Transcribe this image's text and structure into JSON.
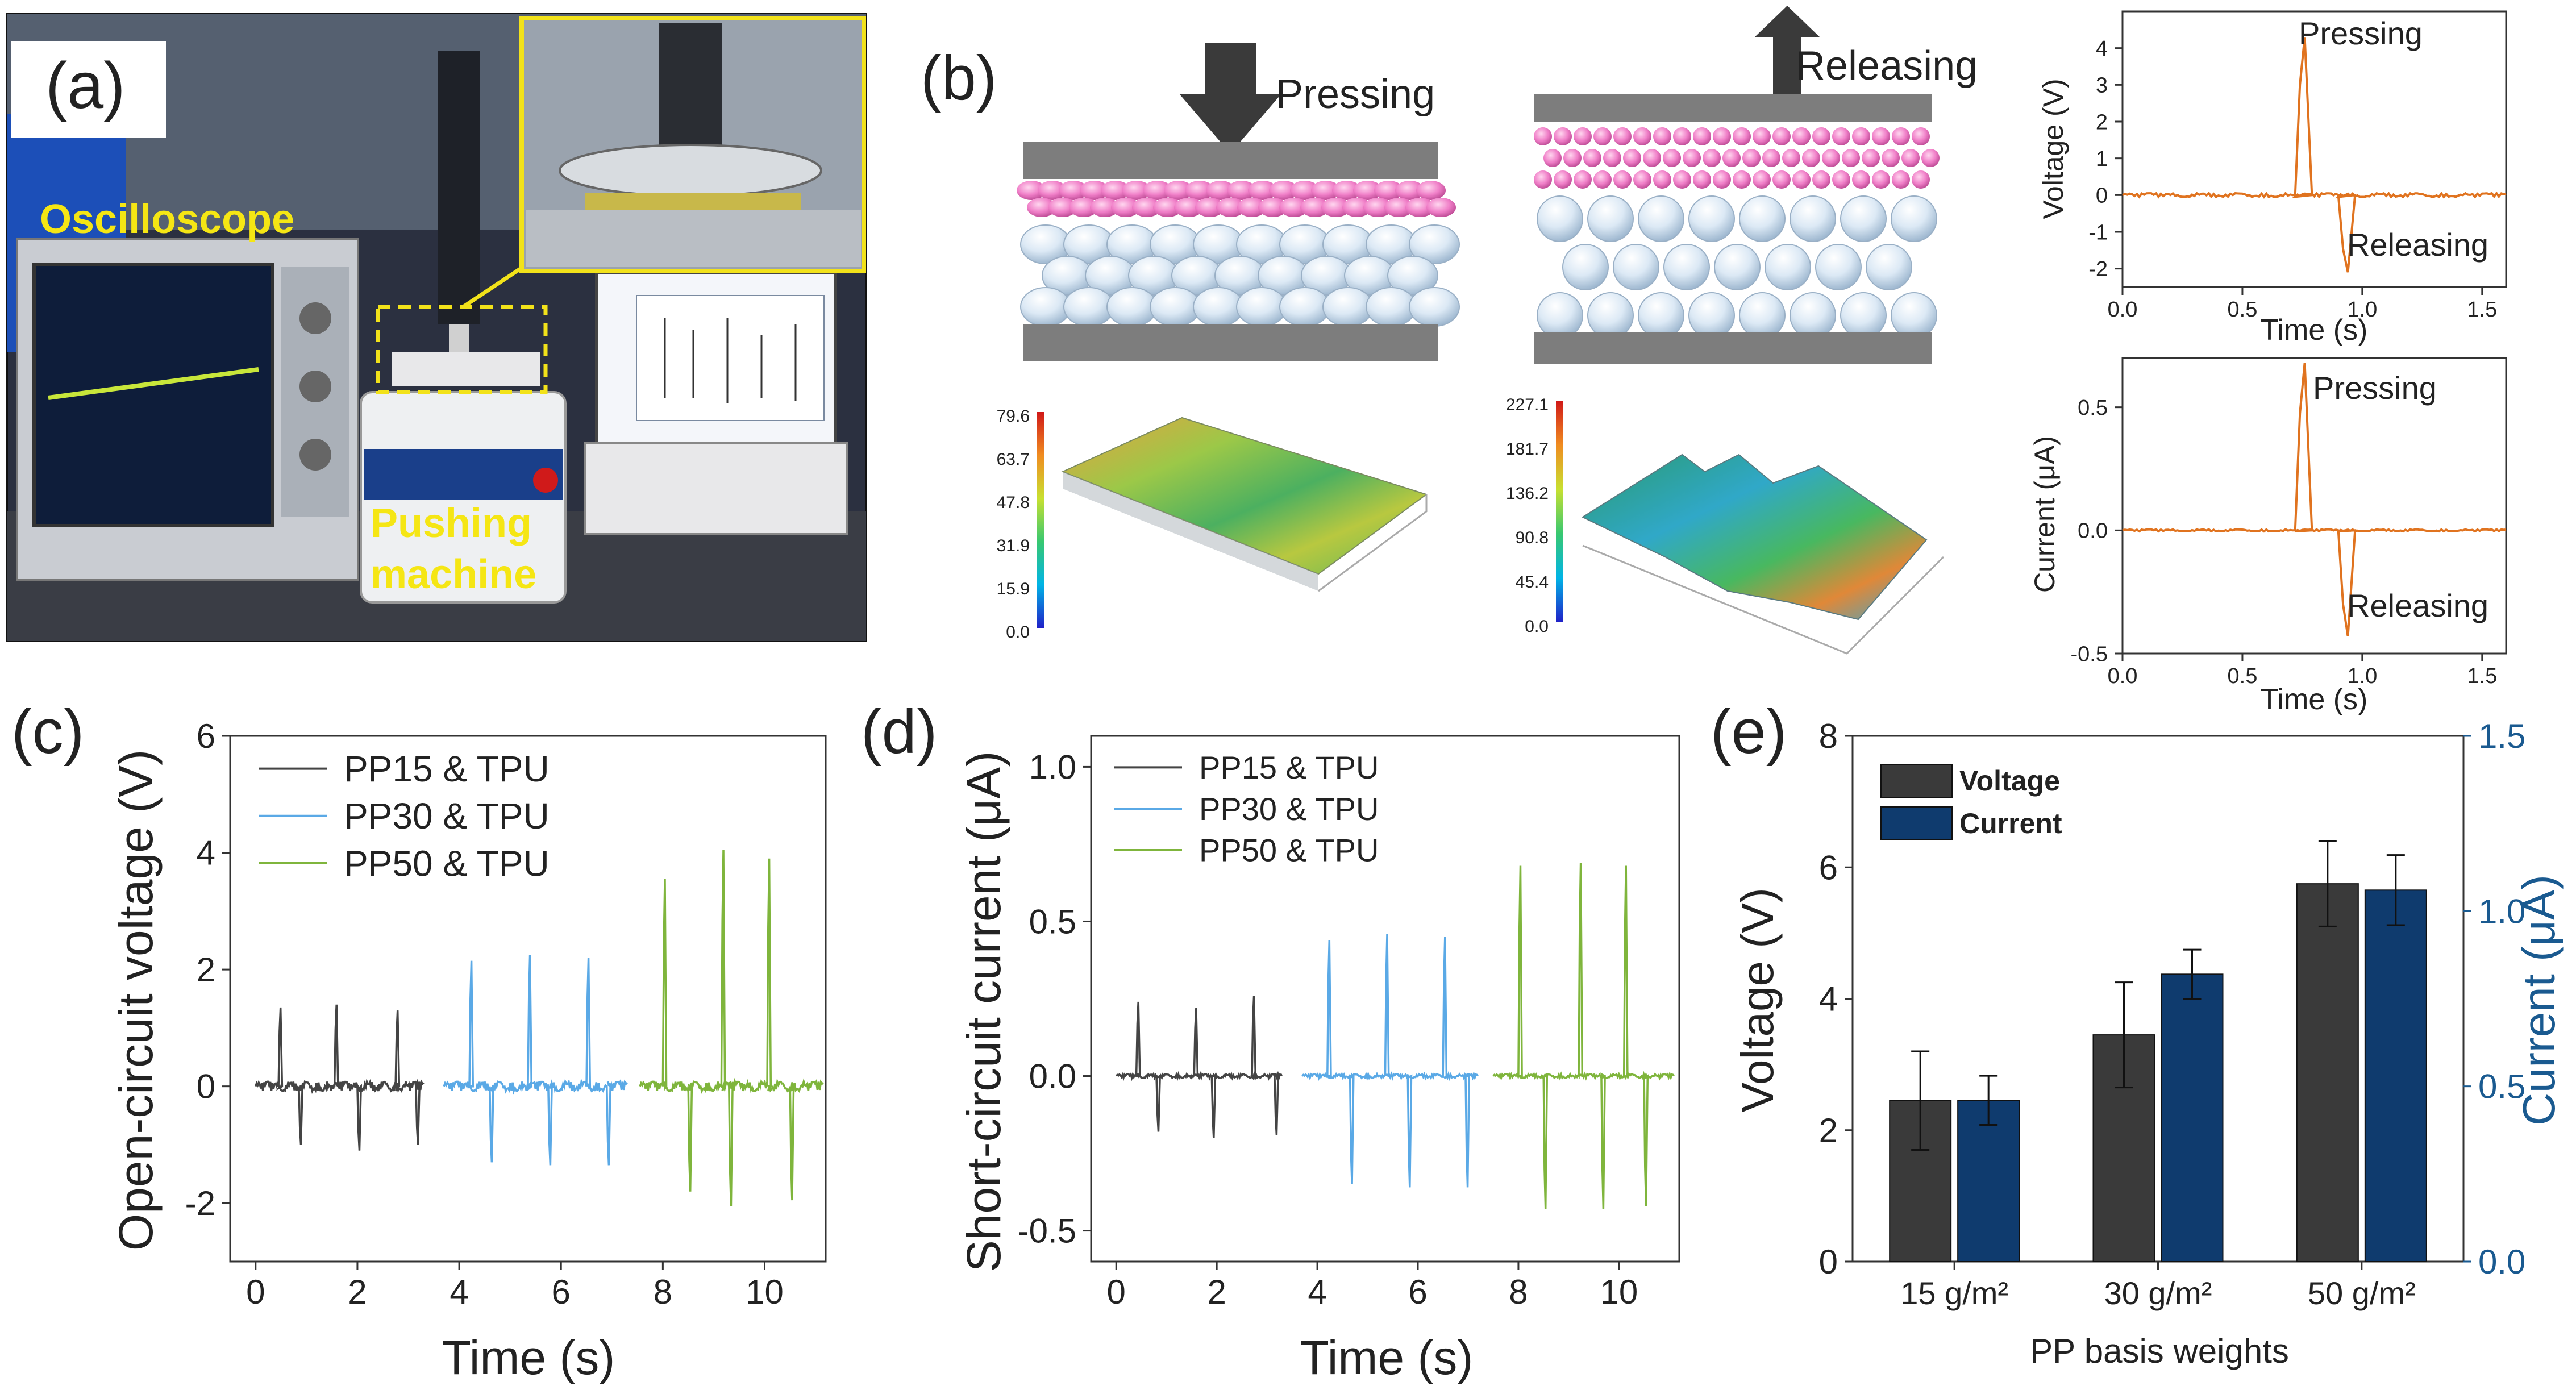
{
  "panels": {
    "a": {
      "label": "(a)",
      "oscilloscope_label": "Oscilloscope",
      "pushing_machine_label_1": "Pushing",
      "pushing_machine_label_2": "machine"
    },
    "b": {
      "label": "(b)",
      "pressing_label": "Pressing",
      "releasing_label": "Releasing",
      "colorbar_left": [
        "79.6",
        "63.7",
        "47.8",
        "31.9",
        "15.9",
        "0.0"
      ],
      "colorbar_right": [
        "227.1",
        "181.7",
        "136.2",
        "90.8",
        "45.4",
        "0.0"
      ]
    },
    "c": {
      "label": "(c)"
    },
    "d": {
      "label": "(d)"
    },
    "e": {
      "label": "(e)"
    }
  },
  "colors": {
    "pp15": "#444444",
    "pp30": "#5aa9e6",
    "pp50": "#7fb53c",
    "orange": "#e0731f",
    "voltage_bar": "#3a3a3a",
    "current_bar": "#0f3b6e",
    "current_axis": "#1a5a90"
  },
  "chart_data": [
    {
      "id": "b-voltage",
      "type": "line",
      "xlabel": "Time (s)",
      "ylabel": "Voltage (V)",
      "xlim": [
        0,
        1.6
      ],
      "ylim": [
        -2.5,
        5
      ],
      "xticks": [
        "0.0",
        "0.5",
        "1.0",
        "1.5"
      ],
      "yticks": [
        "-2",
        "-1",
        "0",
        "1",
        "2",
        "3",
        "4"
      ],
      "annotations": [
        "Pressing",
        "Releasing"
      ],
      "peak_time": 0.72,
      "peak_value": 4.3,
      "valley_time": 0.9,
      "valley_value": -2.1
    },
    {
      "id": "b-current",
      "type": "line",
      "xlabel": "Time (s)",
      "ylabel": "Current (μA)",
      "xlim": [
        0,
        1.6
      ],
      "ylim": [
        -0.5,
        0.7
      ],
      "xticks": [
        "0.0",
        "0.5",
        "1.0",
        "1.5"
      ],
      "yticks": [
        "-0.5",
        "0.0",
        "0.5"
      ],
      "annotations": [
        "Pressing",
        "Releasing"
      ],
      "peak_time": 0.72,
      "peak_value": 0.68,
      "valley_time": 0.9,
      "valley_value": -0.43
    },
    {
      "id": "c",
      "type": "line",
      "xlabel": "Time (s)",
      "ylabel": "Open-circuit voltage (V)",
      "xlim": [
        -0.5,
        11.2
      ],
      "ylim": [
        -3,
        6
      ],
      "xticks": [
        "0",
        "2",
        "4",
        "6",
        "8",
        "10"
      ],
      "yticks": [
        "-2",
        "0",
        "2",
        "4",
        "6"
      ],
      "legend_position": "top-left",
      "series": [
        {
          "name": "PP15 & TPU",
          "start": 0,
          "end": 3.3,
          "peaks": [
            [
              0.45,
              1.35
            ],
            [
              1.55,
              1.4
            ],
            [
              2.75,
              1.3
            ]
          ],
          "valleys": [
            [
              0.85,
              -1.0
            ],
            [
              2.0,
              -1.1
            ],
            [
              3.15,
              -1.0
            ]
          ]
        },
        {
          "name": "PP30 & TPU",
          "start": 3.7,
          "end": 7.3,
          "peaks": [
            [
              4.2,
              2.15
            ],
            [
              5.35,
              2.25
            ],
            [
              6.5,
              2.2
            ]
          ],
          "valleys": [
            [
              4.6,
              -1.3
            ],
            [
              5.75,
              -1.35
            ],
            [
              6.9,
              -1.35
            ]
          ]
        },
        {
          "name": "PP50 & TPU",
          "start": 7.55,
          "end": 11.15,
          "peaks": [
            [
              8.0,
              3.55
            ],
            [
              9.15,
              4.05
            ],
            [
              10.05,
              3.9
            ]
          ],
          "valleys": [
            [
              8.5,
              -1.8
            ],
            [
              9.3,
              -2.05
            ],
            [
              10.5,
              -1.95
            ]
          ]
        }
      ]
    },
    {
      "id": "d",
      "type": "line",
      "xlabel": "Time (s)",
      "ylabel": "Short-circuit current (μA)",
      "xlim": [
        -0.5,
        11.2
      ],
      "ylim": [
        -0.6,
        1.1
      ],
      "xticks": [
        "0",
        "2",
        "4",
        "6",
        "8",
        "10"
      ],
      "yticks": [
        "-0.5",
        "0.0",
        "0.5",
        "1.0"
      ],
      "legend_position": "top-left",
      "series": [
        {
          "name": "PP15 & TPU",
          "start": 0,
          "end": 3.3,
          "peaks": [
            [
              0.4,
              0.24
            ],
            [
              1.55,
              0.22
            ],
            [
              2.7,
              0.26
            ]
          ],
          "valleys": [
            [
              0.8,
              -0.18
            ],
            [
              1.9,
              -0.2
            ],
            [
              3.15,
              -0.19
            ]
          ]
        },
        {
          "name": "PP30 & TPU",
          "start": 3.7,
          "end": 7.2,
          "peaks": [
            [
              4.2,
              0.44
            ],
            [
              5.35,
              0.46
            ],
            [
              6.5,
              0.45
            ]
          ],
          "valleys": [
            [
              4.65,
              -0.35
            ],
            [
              5.8,
              -0.36
            ],
            [
              6.95,
              -0.36
            ]
          ]
        },
        {
          "name": "PP50 & TPU",
          "start": 7.5,
          "end": 11.1,
          "peaks": [
            [
              8.0,
              0.68
            ],
            [
              9.2,
              0.69
            ],
            [
              10.1,
              0.68
            ]
          ],
          "valleys": [
            [
              8.5,
              -0.43
            ],
            [
              9.65,
              -0.43
            ],
            [
              10.5,
              -0.42
            ]
          ]
        }
      ]
    },
    {
      "id": "e",
      "type": "bar",
      "xlabel": "PP basis weights",
      "ylabel": "Voltage (V)",
      "ylabel_right": "Current (μA)",
      "ylim": [
        0,
        8
      ],
      "ylim_right": [
        0,
        1.5
      ],
      "yticks": [
        "0",
        "2",
        "4",
        "6",
        "8"
      ],
      "yticks_right": [
        "0.0",
        "0.5",
        "1.0",
        "1.5"
      ],
      "categories": [
        "15 g/m²",
        "30 g/m²",
        "50 g/m²"
      ],
      "legend_position": "top-left",
      "series": [
        {
          "name": "Voltage",
          "axis": "left",
          "values": [
            2.45,
            3.45,
            5.75
          ],
          "errors": [
            0.75,
            0.8,
            0.65
          ]
        },
        {
          "name": "Current",
          "axis": "right",
          "values": [
            0.46,
            0.82,
            1.06
          ],
          "errors": [
            0.07,
            0.07,
            0.1
          ]
        }
      ]
    }
  ]
}
